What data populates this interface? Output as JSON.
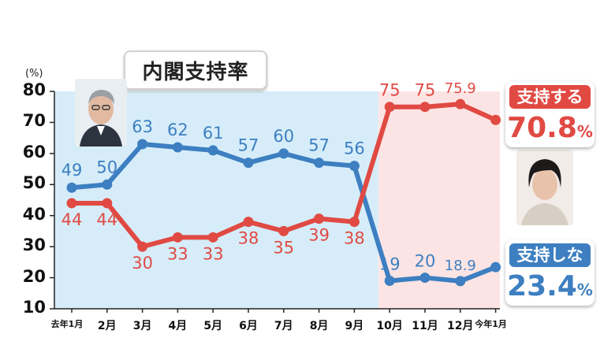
{
  "title": "内閣支持率",
  "y_unit": "(%)",
  "colors": {
    "support": "#e04a43",
    "nonsupport": "#3d7fc1",
    "bg_left": "#d6edf9",
    "bg_right": "#fde4e4"
  },
  "callouts": {
    "support": {
      "label": "支持する",
      "value": "70.8",
      "unit": "%"
    },
    "nonsupport": {
      "label": "支持しない",
      "value": "23.4",
      "unit": "%"
    }
  },
  "portraits": {
    "left": "prime-minister-portrait-left",
    "right": "prime-minister-portrait-right"
  },
  "chart_data": {
    "type": "line",
    "title": "内閣支持率",
    "ylabel": "(%)",
    "ylim": [
      10,
      80
    ],
    "yticks": [
      10,
      20,
      30,
      40,
      50,
      60,
      70,
      80
    ],
    "categories": [
      "去年1月",
      "2月",
      "3月",
      "4月",
      "5月",
      "6月",
      "7月",
      "8月",
      "9月",
      "10月",
      "11月",
      "12月",
      "今年1月"
    ],
    "series": [
      {
        "name": "支持しない",
        "color": "#3d7fc1",
        "values": [
          49,
          50,
          63,
          62,
          61,
          57,
          60,
          57,
          56,
          19,
          20,
          18.9,
          23.4
        ],
        "labels": [
          "49",
          "50",
          "63",
          "62",
          "61",
          "57",
          "60",
          "57",
          "56",
          "19",
          "20",
          "18.9",
          ""
        ]
      },
      {
        "name": "支持する",
        "color": "#e04a43",
        "values": [
          44,
          44,
          30,
          33,
          33,
          38,
          35,
          39,
          38,
          75,
          75,
          75.9,
          70.8
        ],
        "labels": [
          "44",
          "44",
          "30",
          "33",
          "33",
          "38",
          "35",
          "39",
          "38",
          "75",
          "75",
          "75.9",
          ""
        ]
      }
    ],
    "grid": false,
    "legend": "right (callout boxes)"
  }
}
